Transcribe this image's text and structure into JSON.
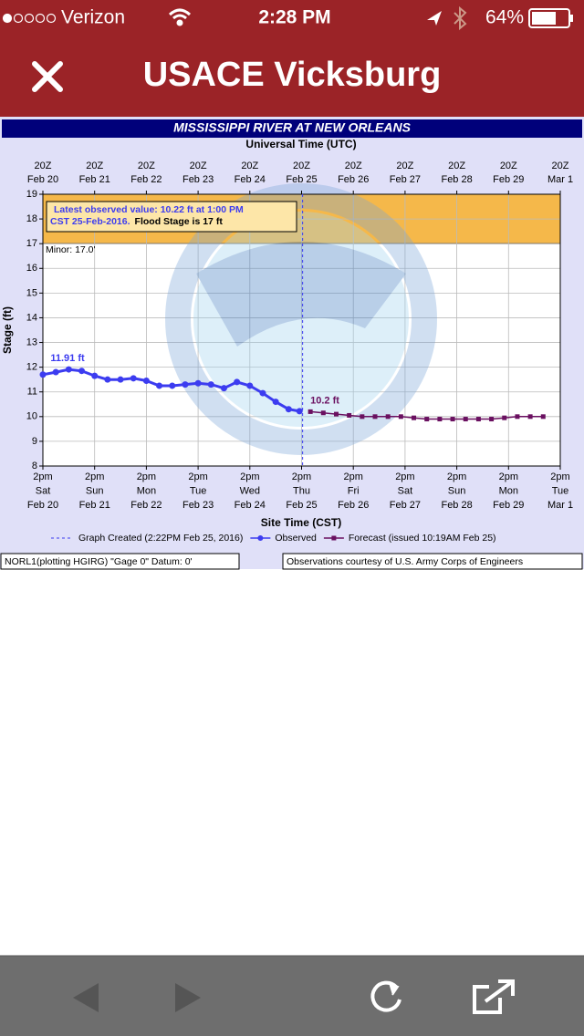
{
  "status_bar": {
    "carrier": "Verizon",
    "time": "2:28 PM",
    "battery": "64%"
  },
  "nav": {
    "title": "USACE Vicksburg"
  },
  "chart_data": {
    "type": "line",
    "title": "MISSISSIPPI RIVER AT NEW ORLEANS",
    "x2_label": "Universal Time (UTC)",
    "x_label": "Site Time (CST)",
    "y_label": "Stage (ft)",
    "xlim": [
      0,
      10
    ],
    "ylim": [
      8,
      19
    ],
    "yticks": [
      8,
      9,
      10,
      11,
      12,
      13,
      14,
      15,
      16,
      17,
      18,
      19
    ],
    "xticks": [
      {
        "value": 0,
        "label": [
          "2pm",
          "Sat",
          "Feb 20"
        ]
      },
      {
        "value": 1,
        "label": [
          "2pm",
          "Sun",
          "Feb 21"
        ]
      },
      {
        "value": 2,
        "label": [
          "2pm",
          "Mon",
          "Feb 22"
        ]
      },
      {
        "value": 3,
        "label": [
          "2pm",
          "Tue",
          "Feb 23"
        ]
      },
      {
        "value": 4,
        "label": [
          "2pm",
          "Wed",
          "Feb 24"
        ]
      },
      {
        "value": 5,
        "label": [
          "2pm",
          "Thu",
          "Feb 25"
        ]
      },
      {
        "value": 6,
        "label": [
          "2pm",
          "Fri",
          "Feb 26"
        ]
      },
      {
        "value": 7,
        "label": [
          "2pm",
          "Sat",
          "Feb 27"
        ]
      },
      {
        "value": 8,
        "label": [
          "2pm",
          "Sun",
          "Feb 28"
        ]
      },
      {
        "value": 9,
        "label": [
          "2pm",
          "Mon",
          "Feb 29"
        ]
      },
      {
        "value": 10,
        "label": [
          "2pm",
          "Tue",
          "Mar 1"
        ]
      }
    ],
    "x2ticks": [
      {
        "value": 0,
        "label": [
          "20Z",
          "Feb 20"
        ]
      },
      {
        "value": 1,
        "label": [
          "20Z",
          "Feb 21"
        ]
      },
      {
        "value": 2,
        "label": [
          "20Z",
          "Feb 22"
        ]
      },
      {
        "value": 3,
        "label": [
          "20Z",
          "Feb 23"
        ]
      },
      {
        "value": 4,
        "label": [
          "20Z",
          "Feb 24"
        ]
      },
      {
        "value": 5,
        "label": [
          "20Z",
          "Feb 25"
        ]
      },
      {
        "value": 6,
        "label": [
          "20Z",
          "Feb 26"
        ]
      },
      {
        "value": 7,
        "label": [
          "20Z",
          "Feb 27"
        ]
      },
      {
        "value": 8,
        "label": [
          "20Z",
          "Feb 28"
        ]
      },
      {
        "value": 9,
        "label": [
          "20Z",
          "Feb 29"
        ]
      },
      {
        "value": 10,
        "label": [
          "20Z",
          "Mar 1"
        ]
      }
    ],
    "grid": true,
    "flood_band": {
      "label": "Minor: 17.0'",
      "value": 17,
      "color": "#f5b84a"
    },
    "graph_created": {
      "label": "Graph Created (2:22PM Feb 25, 2016)",
      "x": 5.02,
      "color": "#3c3cf0"
    },
    "annotation": {
      "lines": [
        "Latest observed value: 10.22 ft at 1:00 PM",
        "CST 25-Feb-2016."
      ],
      "flood_text": "Flood Stage is 17 ft"
    },
    "series": [
      {
        "name": "Observed",
        "color": "#3c3cf0",
        "marker": "circle",
        "x": [
          0,
          0.25,
          0.5,
          0.75,
          1,
          1.25,
          1.5,
          1.75,
          2,
          2.25,
          2.5,
          2.75,
          3,
          3.25,
          3.5,
          3.75,
          4,
          4.25,
          4.5,
          4.75,
          4.96
        ],
        "values": [
          11.7,
          11.8,
          11.91,
          11.85,
          11.65,
          11.5,
          11.5,
          11.55,
          11.45,
          11.25,
          11.25,
          11.3,
          11.35,
          11.3,
          11.15,
          11.4,
          11.25,
          10.95,
          10.6,
          10.3,
          10.22
        ],
        "peak_label": {
          "text": "11.91 ft",
          "index": 2
        }
      },
      {
        "name": "Forecast (issued 10:19AM Feb 25)",
        "color": "#6a1060",
        "marker": "square",
        "x": [
          5.17,
          5.42,
          5.67,
          5.92,
          6.17,
          6.42,
          6.67,
          6.92,
          7.17,
          7.42,
          7.67,
          7.92,
          8.17,
          8.42,
          8.67,
          8.92,
          9.17,
          9.42,
          9.67
        ],
        "values": [
          10.2,
          10.15,
          10.1,
          10.05,
          10,
          10,
          10,
          10,
          9.95,
          9.9,
          9.9,
          9.9,
          9.9,
          9.9,
          9.9,
          9.95,
          10,
          10,
          10
        ],
        "peak_label": {
          "text": "10.2 ft",
          "index": 0
        }
      }
    ],
    "footer_left": "NORL1(plotting HGIRG) \"Gage 0\" Datum: 0'",
    "footer_right": "Observations courtesy of U.S. Army Corps of Engineers"
  }
}
